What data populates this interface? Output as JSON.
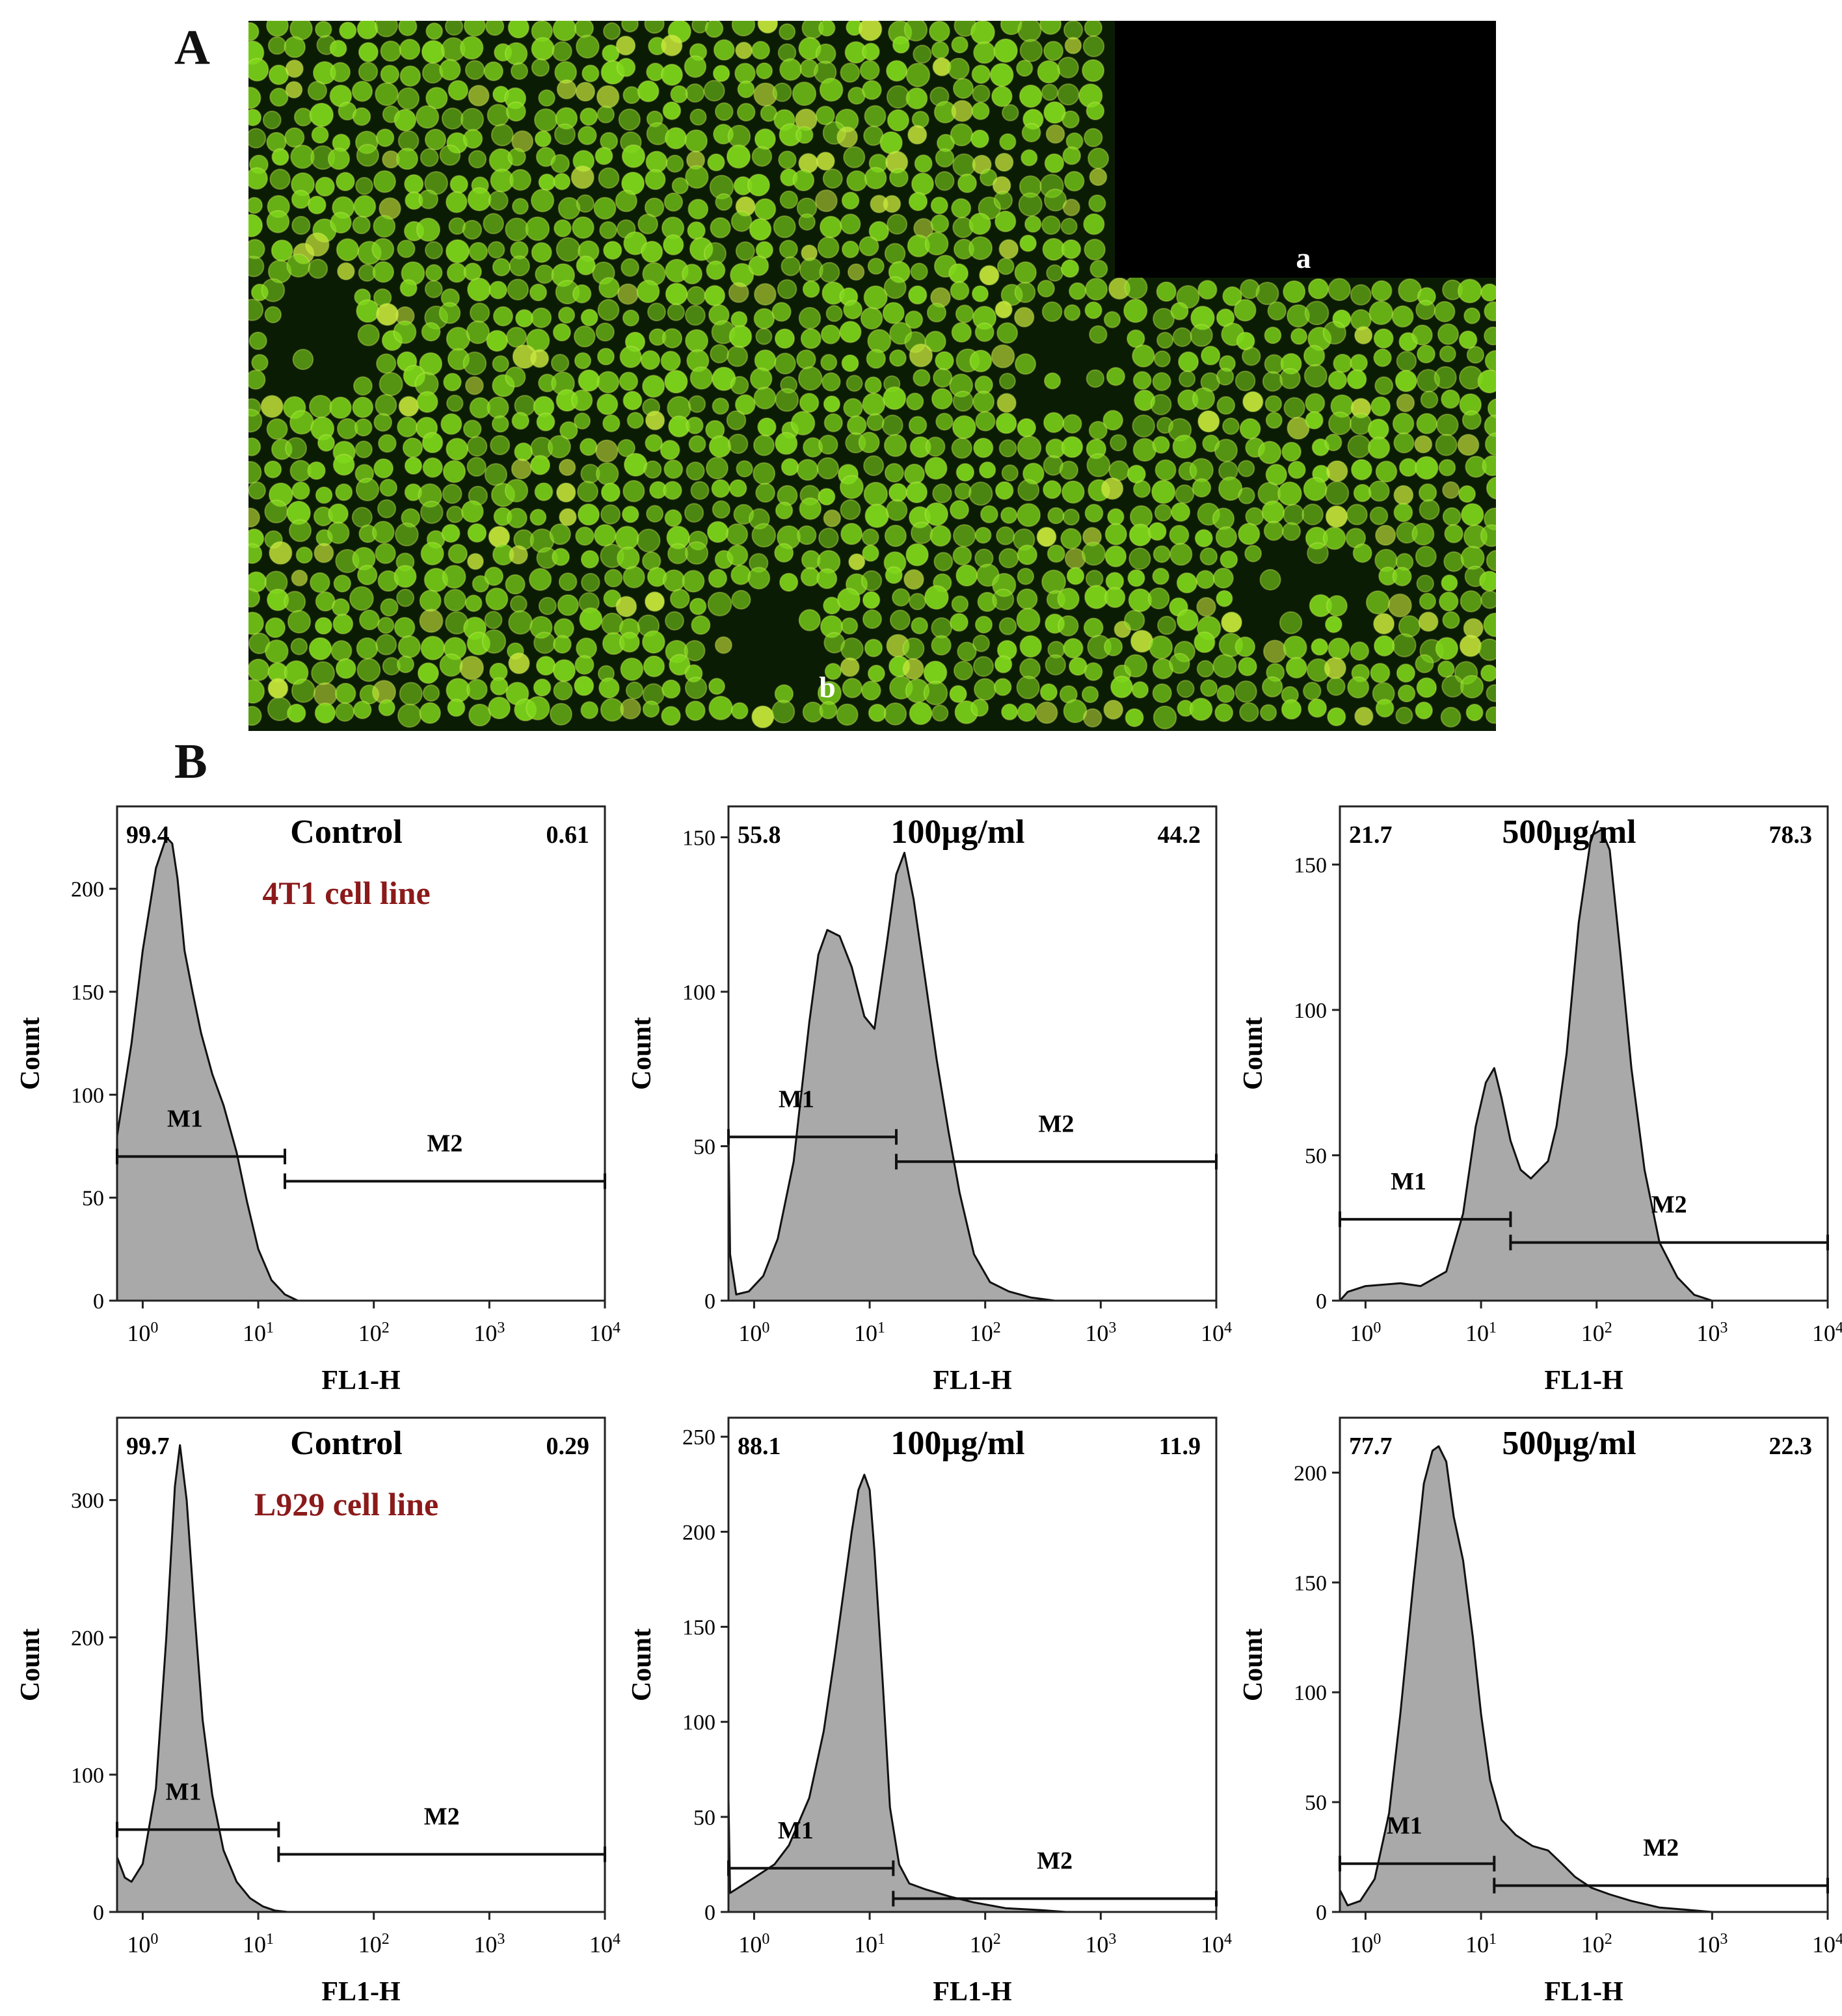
{
  "figure": {
    "panel_labels": {
      "A": "A",
      "B": "B"
    },
    "micrograph": {
      "sub_labels": {
        "a": "a",
        "b": "b"
      },
      "colors": {
        "background": "#0b1c05",
        "cell": "#7fd81a",
        "cell_bright": "#c8e83a",
        "inset": "#000000"
      }
    }
  },
  "chart_data": [
    {
      "type": "area",
      "title": "Control",
      "subtitle": "4T1 cell line",
      "xlabel": "FL1-H",
      "ylabel": "Count",
      "x_scale": "log",
      "xlim": [
        0.6,
        10000
      ],
      "x_ticks": [
        {
          "base": "10",
          "exp": "0"
        },
        {
          "base": "10",
          "exp": "1"
        },
        {
          "base": "10",
          "exp": "2"
        },
        {
          "base": "10",
          "exp": "3"
        },
        {
          "base": "10",
          "exp": "4"
        }
      ],
      "y_ticks": [
        "0",
        "50",
        "100",
        "150",
        "200"
      ],
      "ylim": [
        0,
        240
      ],
      "gate_values": {
        "left": "99.4",
        "right": "0.61"
      },
      "gates": [
        {
          "name": "M1",
          "x_start": 0.6,
          "x_end": 17,
          "y": 70
        },
        {
          "name": "M2",
          "x_start": 17,
          "x_end": 10000,
          "y": 58
        }
      ],
      "series": [
        {
          "x": [
            0.6,
            0.8,
            1.0,
            1.3,
            1.6,
            1.8,
            2.0,
            2.3,
            2.7,
            3.2,
            4.0,
            5.0,
            6.5,
            8.0,
            10,
            13,
            17,
            22
          ],
          "y": [
            80,
            125,
            170,
            210,
            225,
            222,
            205,
            170,
            150,
            130,
            110,
            95,
            72,
            48,
            25,
            10,
            3,
            0
          ]
        }
      ]
    },
    {
      "type": "area",
      "title": "100µg/ml",
      "xlabel": "FL1-H",
      "ylabel": "Count",
      "x_scale": "log",
      "xlim": [
        0.6,
        10000
      ],
      "x_ticks": [
        {
          "base": "10",
          "exp": "0"
        },
        {
          "base": "10",
          "exp": "1"
        },
        {
          "base": "10",
          "exp": "2"
        },
        {
          "base": "10",
          "exp": "3"
        },
        {
          "base": "10",
          "exp": "4"
        }
      ],
      "y_ticks": [
        "0",
        "50",
        "100",
        "150"
      ],
      "ylim": [
        0,
        160
      ],
      "gate_values": {
        "left": "55.8",
        "right": "44.2"
      },
      "gates": [
        {
          "name": "M1",
          "x_start": 0.6,
          "x_end": 17,
          "y": 53
        },
        {
          "name": "M2",
          "x_start": 17,
          "x_end": 10000,
          "y": 45
        }
      ],
      "series": [
        {
          "x": [
            0.6,
            0.62,
            0.7,
            0.9,
            1.2,
            1.6,
            2.2,
            3.0,
            3.6,
            4.3,
            5.5,
            7.0,
            9.0,
            11,
            14,
            17,
            20,
            24,
            30,
            38,
            48,
            60,
            80,
            110,
            160,
            250,
            400
          ],
          "y": [
            55,
            15,
            2,
            3,
            8,
            20,
            45,
            90,
            112,
            120,
            118,
            108,
            92,
            88,
            115,
            138,
            145,
            130,
            105,
            78,
            55,
            35,
            15,
            6,
            3,
            1,
            0
          ]
        }
      ]
    },
    {
      "type": "area",
      "title": "500µg/ml",
      "xlabel": "FL1-H",
      "ylabel": "Count",
      "x_scale": "log",
      "xlim": [
        0.6,
        10000
      ],
      "x_ticks": [
        {
          "base": "10",
          "exp": "0"
        },
        {
          "base": "10",
          "exp": "1"
        },
        {
          "base": "10",
          "exp": "2"
        },
        {
          "base": "10",
          "exp": "3"
        },
        {
          "base": "10",
          "exp": "4"
        }
      ],
      "y_ticks": [
        "0",
        "50",
        "100",
        "150"
      ],
      "ylim": [
        0,
        170
      ],
      "gate_values": {
        "left": "21.7",
        "right": "78.3"
      },
      "gates": [
        {
          "name": "M1",
          "x_start": 0.6,
          "x_end": 18,
          "y": 28
        },
        {
          "name": "M2",
          "x_start": 18,
          "x_end": 10000,
          "y": 20
        }
      ],
      "series": [
        {
          "x": [
            0.6,
            0.7,
            1.0,
            2.0,
            3.0,
            5.0,
            7.0,
            9.0,
            11,
            13,
            15,
            18,
            22,
            27,
            32,
            38,
            45,
            55,
            70,
            90,
            110,
            130,
            160,
            200,
            260,
            350,
            500,
            700,
            1000
          ],
          "y": [
            0,
            3,
            5,
            6,
            5,
            10,
            30,
            60,
            75,
            80,
            70,
            55,
            45,
            42,
            45,
            48,
            60,
            85,
            130,
            160,
            162,
            155,
            120,
            80,
            45,
            20,
            8,
            2,
            0
          ]
        }
      ]
    },
    {
      "type": "area",
      "title": "Control",
      "subtitle": "L929 cell line",
      "xlabel": "FL1-H",
      "ylabel": "Count",
      "x_scale": "log",
      "xlim": [
        0.6,
        10000
      ],
      "x_ticks": [
        {
          "base": "10",
          "exp": "0"
        },
        {
          "base": "10",
          "exp": "1"
        },
        {
          "base": "10",
          "exp": "2"
        },
        {
          "base": "10",
          "exp": "3"
        },
        {
          "base": "10",
          "exp": "4"
        }
      ],
      "y_ticks": [
        "0",
        "100",
        "200",
        "300"
      ],
      "ylim": [
        0,
        360
      ],
      "gate_values": {
        "left": "99.7",
        "right": "0.29"
      },
      "gates": [
        {
          "name": "M1",
          "x_start": 0.6,
          "x_end": 15,
          "y": 60
        },
        {
          "name": "M2",
          "x_start": 15,
          "x_end": 10000,
          "y": 42
        }
      ],
      "series": [
        {
          "x": [
            0.6,
            0.7,
            0.8,
            1.0,
            1.3,
            1.6,
            1.9,
            2.1,
            2.4,
            2.8,
            3.3,
            4.0,
            5.0,
            6.5,
            8.5,
            11,
            14,
            18
          ],
          "y": [
            40,
            25,
            22,
            35,
            90,
            200,
            310,
            340,
            300,
            220,
            140,
            85,
            45,
            22,
            10,
            4,
            1,
            0
          ]
        }
      ]
    },
    {
      "type": "area",
      "title": "100µg/ml",
      "xlabel": "FL1-H",
      "ylabel": "Count",
      "x_scale": "log",
      "xlim": [
        0.6,
        10000
      ],
      "x_ticks": [
        {
          "base": "10",
          "exp": "0"
        },
        {
          "base": "10",
          "exp": "1"
        },
        {
          "base": "10",
          "exp": "2"
        },
        {
          "base": "10",
          "exp": "3"
        },
        {
          "base": "10",
          "exp": "4"
        }
      ],
      "y_ticks": [
        "0",
        "50",
        "100",
        "150",
        "200",
        "250"
      ],
      "ylim": [
        0,
        260
      ],
      "gate_values": {
        "left": "88.1",
        "right": "11.9"
      },
      "gates": [
        {
          "name": "M1",
          "x_start": 0.6,
          "x_end": 16,
          "y": 23
        },
        {
          "name": "M2",
          "x_start": 16,
          "x_end": 10000,
          "y": 7
        }
      ],
      "series": [
        {
          "x": [
            0.6,
            0.62,
            0.7,
            1.0,
            1.5,
            2.0,
            3.0,
            4.0,
            5.0,
            6.0,
            7.0,
            8.0,
            9.0,
            10,
            11,
            13,
            15,
            18,
            22,
            30,
            50,
            80,
            150,
            300,
            500
          ],
          "y": [
            60,
            10,
            12,
            18,
            25,
            35,
            60,
            95,
            135,
            170,
            200,
            222,
            230,
            222,
            190,
            120,
            55,
            25,
            15,
            12,
            8,
            5,
            2,
            1,
            0
          ]
        }
      ]
    },
    {
      "type": "area",
      "title": "500µg/ml",
      "xlabel": "FL1-H",
      "ylabel": "Count",
      "x_scale": "log",
      "xlim": [
        0.6,
        10000
      ],
      "x_ticks": [
        {
          "base": "10",
          "exp": "0"
        },
        {
          "base": "10",
          "exp": "1"
        },
        {
          "base": "10",
          "exp": "2"
        },
        {
          "base": "10",
          "exp": "3"
        },
        {
          "base": "10",
          "exp": "4"
        }
      ],
      "y_ticks": [
        "0",
        "50",
        "100",
        "150",
        "200"
      ],
      "ylim": [
        0,
        225
      ],
      "gate_values": {
        "left": "77.7",
        "right": "22.3"
      },
      "gates": [
        {
          "name": "M1",
          "x_start": 0.6,
          "x_end": 13,
          "y": 22
        },
        {
          "name": "M2",
          "x_start": 13,
          "x_end": 10000,
          "y": 12
        }
      ],
      "series": [
        {
          "x": [
            0.6,
            0.7,
            0.9,
            1.2,
            1.6,
            2.0,
            2.6,
            3.2,
            3.8,
            4.3,
            5.0,
            5.8,
            7.0,
            8.5,
            10,
            12,
            15,
            20,
            28,
            38,
            50,
            65,
            90,
            130,
            200,
            350,
            600,
            1000
          ],
          "y": [
            10,
            3,
            5,
            15,
            45,
            90,
            150,
            195,
            210,
            212,
            205,
            180,
            160,
            125,
            90,
            60,
            42,
            35,
            30,
            28,
            22,
            16,
            11,
            8,
            5,
            2,
            1,
            0
          ]
        }
      ]
    }
  ]
}
